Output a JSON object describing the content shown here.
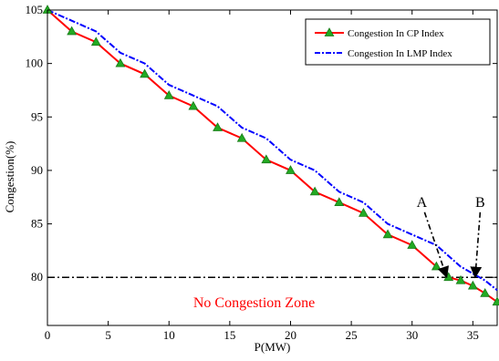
{
  "chart_data": {
    "type": "line",
    "xlabel": "P(MW)",
    "ylabel": "Congestion(%)",
    "xlim": [
      0,
      37
    ],
    "ylim": [
      75.5,
      105
    ],
    "xticks": [
      0,
      5,
      10,
      15,
      20,
      25,
      30,
      35
    ],
    "yticks": [
      80,
      85,
      90,
      95,
      100,
      105
    ],
    "grid": false,
    "legend_position": "top-right",
    "series": [
      {
        "name": "Congestion In CP Index",
        "color": "#ff0000",
        "marker": "triangle",
        "marker_color": "#22aa22",
        "x": [
          0,
          2,
          4,
          6,
          8,
          10,
          12,
          14,
          16,
          18,
          20,
          22,
          24,
          26,
          28,
          30,
          32,
          33,
          34,
          35,
          36,
          37
        ],
        "y": [
          105,
          103,
          102,
          100,
          99,
          97,
          96,
          94,
          93,
          91,
          90,
          88,
          87,
          86,
          84,
          83,
          81,
          80,
          79.7,
          79.2,
          78.5,
          77.7
        ]
      },
      {
        "name": "Congestion In LMP Index",
        "color": "#0000ff",
        "marker": "none",
        "x": [
          0,
          2,
          4,
          6,
          8,
          10,
          12,
          14,
          16,
          18,
          20,
          22,
          24,
          26,
          28,
          30,
          32,
          34,
          36,
          37
        ],
        "y": [
          105,
          104,
          103,
          101,
          100,
          98,
          97,
          96,
          94,
          93,
          91,
          90,
          88,
          87,
          85,
          84,
          83,
          81,
          79.7,
          78.8
        ]
      }
    ],
    "threshold": {
      "y": 80,
      "style": "dash-dot",
      "color": "#000000"
    },
    "annotations": [
      {
        "text": "A",
        "x": 30.8,
        "y": 86.6,
        "arrow_to": [
          32.8,
          80
        ]
      },
      {
        "text": "B",
        "x": 35.6,
        "y": 86.6,
        "arrow_to": [
          35.2,
          80
        ]
      }
    ],
    "zone_label": {
      "text": "No Congestion Zone",
      "x": 17.0,
      "y": 77.2,
      "color": "#ff0000"
    }
  }
}
